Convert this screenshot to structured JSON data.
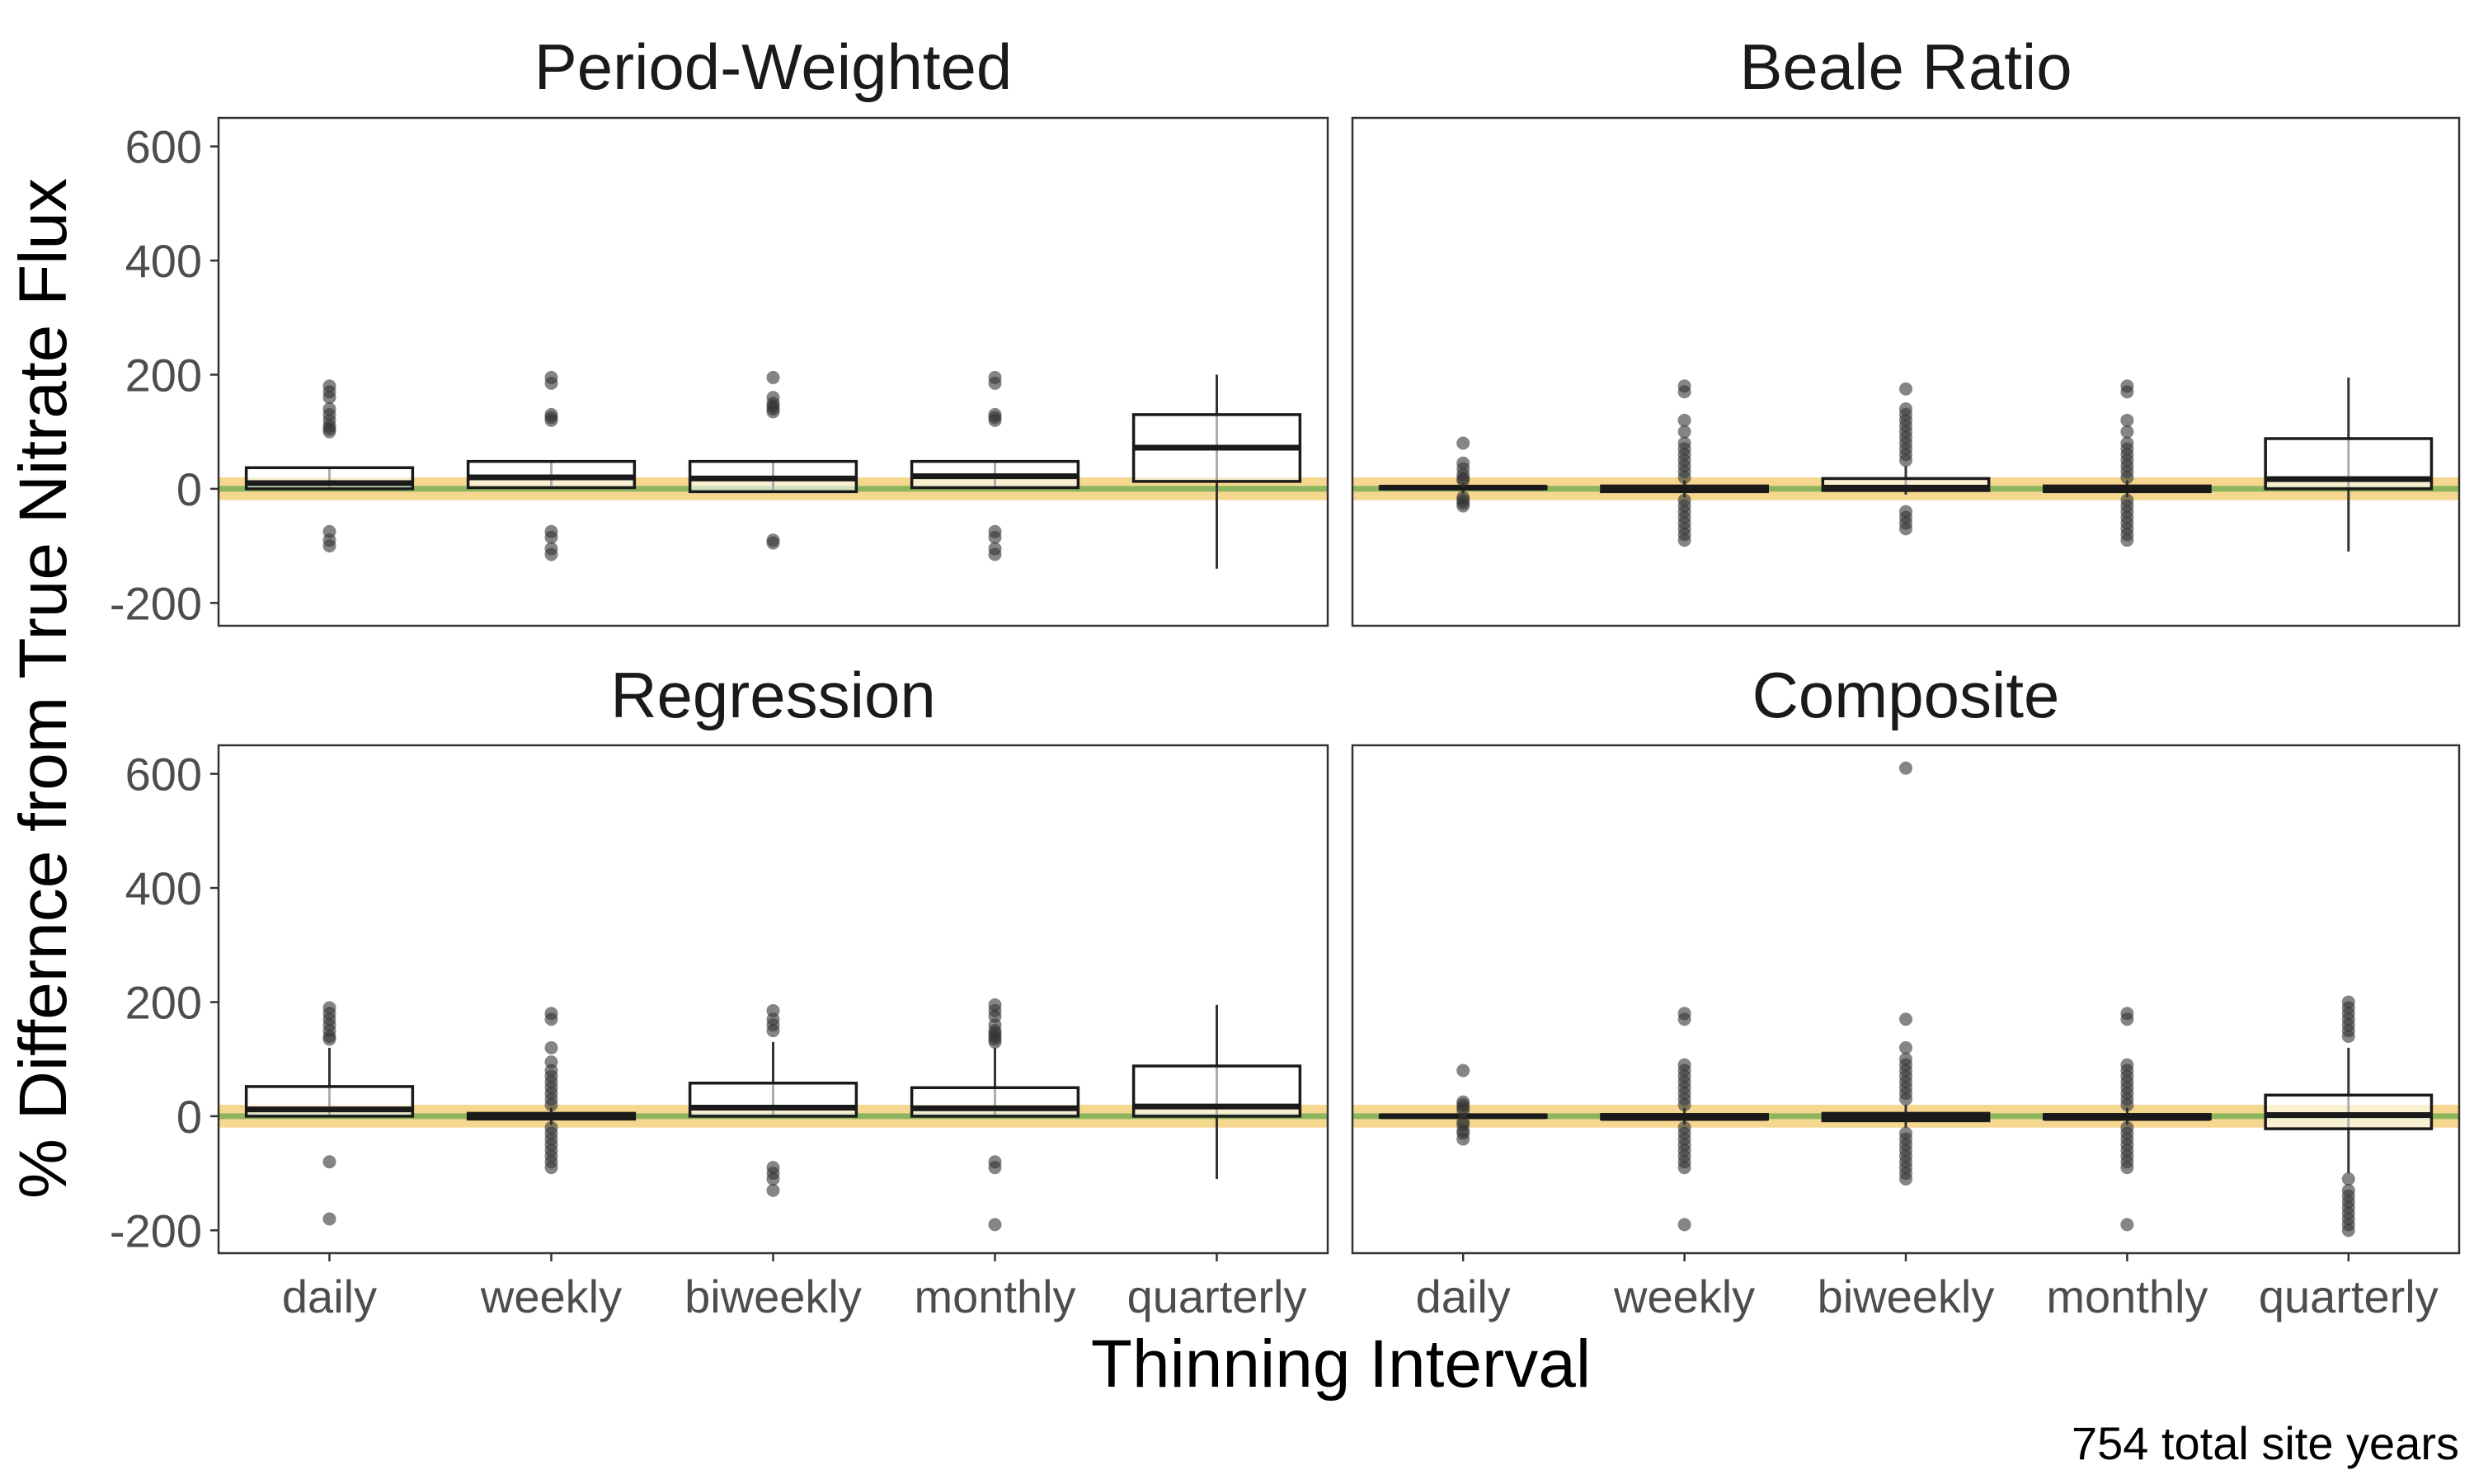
{
  "chart_data": {
    "type": "boxplot",
    "xlabel": "Thinning Interval",
    "ylabel": "% Differnce from True Nitrate Flux",
    "caption": "754 total site years",
    "ylim": [
      -240,
      650
    ],
    "yticks": [
      -200,
      0,
      200,
      400,
      600
    ],
    "ytick_labels": [
      "-200",
      "0",
      "200",
      "400",
      "600"
    ],
    "categories": [
      "daily",
      "weekly",
      "biweekly",
      "monthly",
      "quarterly"
    ],
    "reference_bands": {
      "outer": [
        -20,
        20
      ],
      "inner": [
        -5,
        5
      ],
      "outer_color": "#f2c96b",
      "inner_color": "#86b35c"
    },
    "panels": [
      {
        "title": "Period-Weighted",
        "boxes": [
          {
            "category": "daily",
            "q1": 0,
            "median": 10,
            "q3": 37,
            "whisker_low": 0,
            "whisker_high": 37,
            "outliers": [
              180,
              170,
              160,
              140,
              130,
              120,
              110,
              105,
              100,
              -75,
              -90,
              -100
            ]
          },
          {
            "category": "weekly",
            "q1": 2,
            "median": 20,
            "q3": 48,
            "whisker_low": 0,
            "whisker_high": 48,
            "outliers": [
              195,
              185,
              130,
              125,
              120,
              -75,
              -85,
              -105,
              -115
            ]
          },
          {
            "category": "biweekly",
            "q1": -5,
            "median": 18,
            "q3": 48,
            "whisker_low": -5,
            "whisker_high": 48,
            "outliers": [
              195,
              160,
              150,
              145,
              140,
              135,
              -90,
              -95
            ]
          },
          {
            "category": "monthly",
            "q1": 2,
            "median": 22,
            "q3": 48,
            "whisker_low": 0,
            "whisker_high": 48,
            "outliers": [
              195,
              185,
              130,
              125,
              120,
              -75,
              -85,
              -105,
              -115
            ]
          },
          {
            "category": "quarterly",
            "q1": 13,
            "median": 72,
            "q3": 130,
            "whisker_low": -140,
            "whisker_high": 200,
            "outliers": []
          }
        ]
      },
      {
        "title": "Beale Ratio",
        "boxes": [
          {
            "category": "daily",
            "q1": 0,
            "median": 2,
            "q3": 4,
            "whisker_low": -8,
            "whisker_high": 10,
            "outliers": [
              80,
              45,
              35,
              25,
              18,
              15,
              -15,
              -20,
              -25,
              -30
            ]
          },
          {
            "category": "weekly",
            "q1": -5,
            "median": 0,
            "q3": 5,
            "whisker_low": -15,
            "whisker_high": 15,
            "outliers": [
              180,
              170,
              120,
              100,
              80,
              70,
              60,
              50,
              40,
              30,
              20,
              -20,
              -30,
              -40,
              -50,
              -60,
              -70,
              -80,
              -90
            ]
          },
          {
            "category": "biweekly",
            "q1": -3,
            "median": 2,
            "q3": 18,
            "whisker_low": -10,
            "whisker_high": 40,
            "outliers": [
              175,
              140,
              130,
              120,
              110,
              100,
              90,
              80,
              70,
              60,
              50,
              -40,
              -50,
              -60,
              -70
            ]
          },
          {
            "category": "monthly",
            "q1": -5,
            "median": 0,
            "q3": 5,
            "whisker_low": -15,
            "whisker_high": 15,
            "outliers": [
              180,
              170,
              120,
              100,
              80,
              70,
              60,
              50,
              40,
              30,
              20,
              -20,
              -30,
              -40,
              -50,
              -60,
              -70,
              -80,
              -90
            ]
          },
          {
            "category": "quarterly",
            "q1": 0,
            "median": 17,
            "q3": 88,
            "whisker_low": -110,
            "whisker_high": 195,
            "outliers": []
          }
        ]
      },
      {
        "title": "Regression",
        "boxes": [
          {
            "category": "daily",
            "q1": 0,
            "median": 12,
            "q3": 52,
            "whisker_low": 0,
            "whisker_high": 120,
            "outliers": [
              190,
              180,
              170,
              160,
              150,
              140,
              135,
              -80,
              -180
            ]
          },
          {
            "category": "weekly",
            "q1": -5,
            "median": 0,
            "q3": 5,
            "whisker_low": -15,
            "whisker_high": 15,
            "outliers": [
              180,
              170,
              120,
              95,
              80,
              70,
              60,
              50,
              40,
              30,
              20,
              -20,
              -30,
              -40,
              -50,
              -60,
              -70,
              -80,
              -90
            ]
          },
          {
            "category": "biweekly",
            "q1": 0,
            "median": 15,
            "q3": 58,
            "whisker_low": 0,
            "whisker_high": 130,
            "outliers": [
              185,
              170,
              160,
              150,
              -90,
              -100,
              -110,
              -130
            ]
          },
          {
            "category": "monthly",
            "q1": 0,
            "median": 14,
            "q3": 50,
            "whisker_low": 0,
            "whisker_high": 120,
            "outliers": [
              195,
              185,
              175,
              160,
              150,
              145,
              140,
              135,
              130,
              -80,
              -90,
              -190
            ]
          },
          {
            "category": "quarterly",
            "q1": 0,
            "median": 17,
            "q3": 88,
            "whisker_low": -110,
            "whisker_high": 195,
            "outliers": []
          }
        ]
      },
      {
        "title": "Composite",
        "boxes": [
          {
            "category": "daily",
            "q1": -2,
            "median": 0,
            "q3": 2,
            "whisker_low": -5,
            "whisker_high": 5,
            "outliers": [
              80,
              25,
              20,
              15,
              10,
              -10,
              -15,
              -25,
              -30,
              -40
            ]
          },
          {
            "category": "weekly",
            "q1": -5,
            "median": -3,
            "q3": 3,
            "whisker_low": -15,
            "whisker_high": 15,
            "outliers": [
              180,
              170,
              90,
              80,
              70,
              60,
              50,
              40,
              30,
              20,
              -20,
              -30,
              -40,
              -50,
              -60,
              -70,
              -80,
              -90,
              -190
            ]
          },
          {
            "category": "biweekly",
            "q1": -8,
            "median": -2,
            "q3": 5,
            "whisker_low": -20,
            "whisker_high": 20,
            "outliers": [
              610,
              170,
              120,
              100,
              90,
              80,
              70,
              60,
              50,
              40,
              30,
              -30,
              -40,
              -50,
              -60,
              -70,
              -80,
              -90,
              -100,
              -110
            ]
          },
          {
            "category": "monthly",
            "q1": -5,
            "median": -3,
            "q3": 3,
            "whisker_low": -15,
            "whisker_high": 15,
            "outliers": [
              180,
              170,
              90,
              80,
              70,
              60,
              50,
              40,
              30,
              20,
              -20,
              -30,
              -40,
              -50,
              -60,
              -70,
              -80,
              -90,
              -190
            ]
          },
          {
            "category": "quarterly",
            "q1": -22,
            "median": 2,
            "q3": 37,
            "whisker_low": -100,
            "whisker_high": 120,
            "outliers": [
              200,
              190,
              180,
              170,
              160,
              150,
              140,
              -110,
              -130,
              -140,
              -150,
              -160,
              -170,
              -180,
              -190,
              -200
            ]
          }
        ]
      }
    ]
  }
}
